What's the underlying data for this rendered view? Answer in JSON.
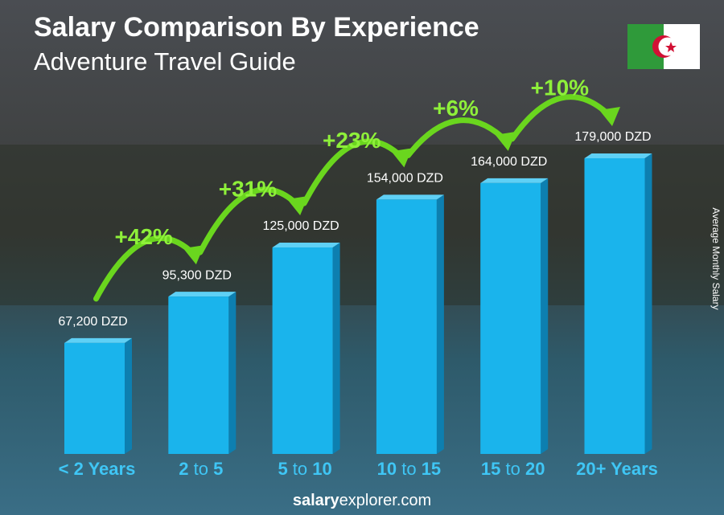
{
  "chart_data": {
    "type": "bar",
    "title": "Salary Comparison By Experience",
    "subtitle": "Adventure Travel Guide",
    "y_axis_label": "Average Monthly Salary",
    "categories": [
      "< 2 Years",
      "2 to 5",
      "5 to 10",
      "10 to 15",
      "15 to 20",
      "20+ Years"
    ],
    "values": [
      67200,
      95300,
      125000,
      154000,
      164000,
      179000
    ],
    "value_labels": [
      "67,200 DZD",
      "95,300 DZD",
      "125,000 DZD",
      "154,000 DZD",
      "164,000 DZD",
      "179,000 DZD"
    ],
    "annotations": [
      "+42%",
      "+31%",
      "+23%",
      "+6%",
      "+10%"
    ],
    "color": "#1ab4ec",
    "source": "salaryexplorer.com"
  }
}
